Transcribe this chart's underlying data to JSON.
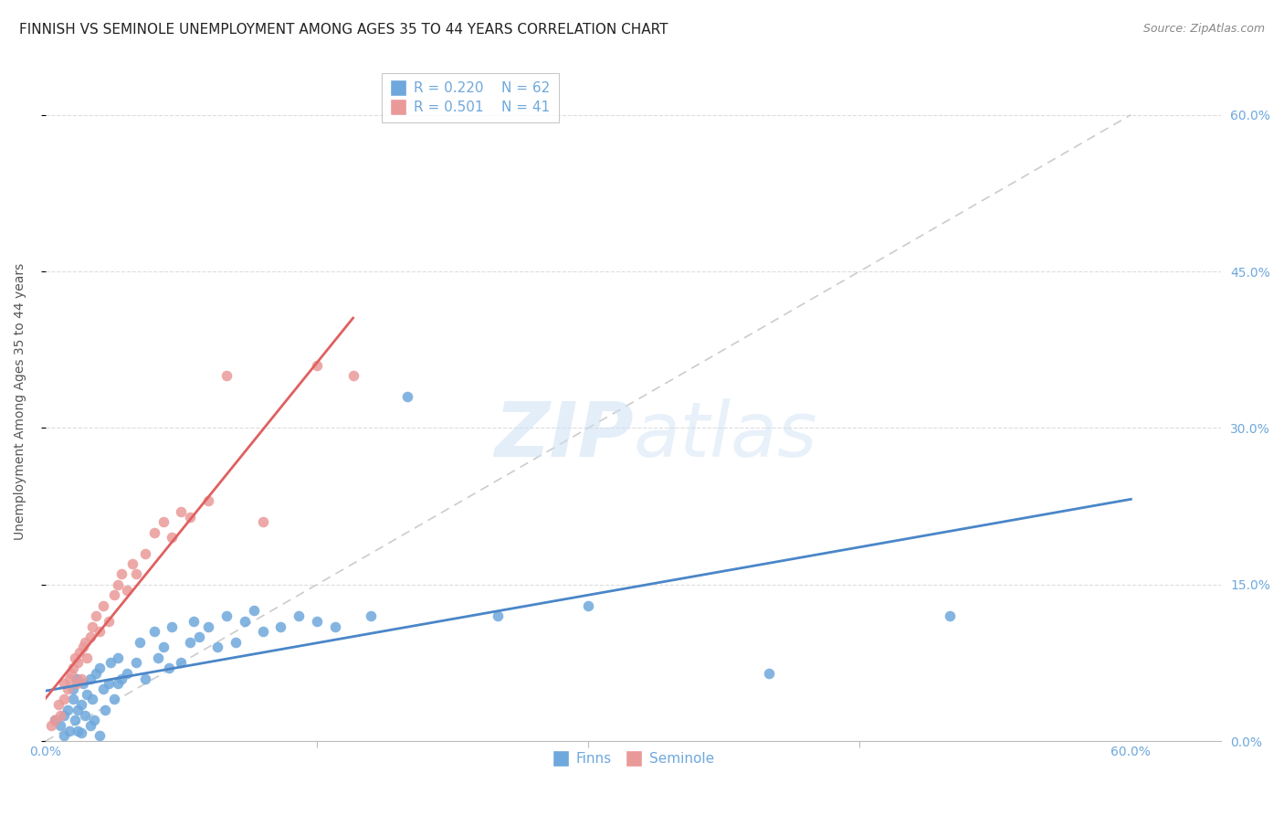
{
  "title": "FINNISH VS SEMINOLE UNEMPLOYMENT AMONG AGES 35 TO 44 YEARS CORRELATION CHART",
  "source": "Source: ZipAtlas.com",
  "ylabel": "Unemployment Among Ages 35 to 44 years",
  "ylim": [
    0.0,
    0.65
  ],
  "xlim": [
    0.0,
    0.65
  ],
  "ytick_positions": [
    0.0,
    0.15,
    0.3,
    0.45,
    0.6
  ],
  "ytick_labels": [
    "0.0%",
    "15.0%",
    "30.0%",
    "45.0%",
    "60.0%"
  ],
  "xtick_positions": [
    0.0,
    0.6
  ],
  "xtick_labels": [
    "0.0%",
    "60.0%"
  ],
  "xtick_minor_positions": [
    0.15,
    0.3,
    0.45
  ],
  "legend_r_finns": "R = 0.220",
  "legend_n_finns": "N = 62",
  "legend_r_seminole": "R = 0.501",
  "legend_n_seminole": "N = 41",
  "color_finns": "#6fa8dc",
  "color_seminole": "#ea9999",
  "color_finns_line": "#4a86c8",
  "color_seminole_line": "#e06060",
  "color_diagonal": "#cccccc",
  "color_axis_ticks": "#6fa8dc",
  "watermark_zip": "ZIP",
  "watermark_atlas": "atlas",
  "finns_x": [
    0.005,
    0.008,
    0.01,
    0.01,
    0.012,
    0.013,
    0.015,
    0.015,
    0.016,
    0.017,
    0.018,
    0.018,
    0.02,
    0.02,
    0.021,
    0.022,
    0.023,
    0.025,
    0.025,
    0.026,
    0.027,
    0.028,
    0.03,
    0.03,
    0.032,
    0.033,
    0.035,
    0.036,
    0.038,
    0.04,
    0.04,
    0.042,
    0.045,
    0.05,
    0.052,
    0.055,
    0.06,
    0.062,
    0.065,
    0.068,
    0.07,
    0.075,
    0.08,
    0.082,
    0.085,
    0.09,
    0.095,
    0.1,
    0.105,
    0.11,
    0.115,
    0.12,
    0.13,
    0.14,
    0.15,
    0.16,
    0.18,
    0.2,
    0.25,
    0.3,
    0.4,
    0.5
  ],
  "finns_y": [
    0.02,
    0.015,
    0.025,
    0.005,
    0.03,
    0.01,
    0.04,
    0.05,
    0.02,
    0.06,
    0.01,
    0.03,
    0.008,
    0.035,
    0.055,
    0.025,
    0.045,
    0.015,
    0.06,
    0.04,
    0.02,
    0.065,
    0.005,
    0.07,
    0.05,
    0.03,
    0.055,
    0.075,
    0.04,
    0.08,
    0.055,
    0.06,
    0.065,
    0.075,
    0.095,
    0.06,
    0.105,
    0.08,
    0.09,
    0.07,
    0.11,
    0.075,
    0.095,
    0.115,
    0.1,
    0.11,
    0.09,
    0.12,
    0.095,
    0.115,
    0.125,
    0.105,
    0.11,
    0.12,
    0.115,
    0.11,
    0.12,
    0.33,
    0.12,
    0.13,
    0.065,
    0.12
  ],
  "seminole_x": [
    0.003,
    0.005,
    0.007,
    0.008,
    0.01,
    0.01,
    0.012,
    0.013,
    0.014,
    0.015,
    0.016,
    0.017,
    0.018,
    0.019,
    0.02,
    0.021,
    0.022,
    0.023,
    0.025,
    0.026,
    0.028,
    0.03,
    0.032,
    0.035,
    0.038,
    0.04,
    0.042,
    0.045,
    0.048,
    0.05,
    0.055,
    0.06,
    0.065,
    0.07,
    0.075,
    0.08,
    0.09,
    0.1,
    0.12,
    0.15,
    0.17
  ],
  "seminole_y": [
    0.015,
    0.02,
    0.035,
    0.025,
    0.04,
    0.055,
    0.05,
    0.06,
    0.065,
    0.07,
    0.08,
    0.055,
    0.075,
    0.085,
    0.06,
    0.09,
    0.095,
    0.08,
    0.1,
    0.11,
    0.12,
    0.105,
    0.13,
    0.115,
    0.14,
    0.15,
    0.16,
    0.145,
    0.17,
    0.16,
    0.18,
    0.2,
    0.21,
    0.195,
    0.22,
    0.215,
    0.23,
    0.35,
    0.21,
    0.36,
    0.35
  ],
  "grid_color": "#dddddd",
  "background_color": "#ffffff",
  "title_fontsize": 11,
  "axis_label_fontsize": 10,
  "tick_fontsize": 10,
  "legend_fontsize": 11
}
